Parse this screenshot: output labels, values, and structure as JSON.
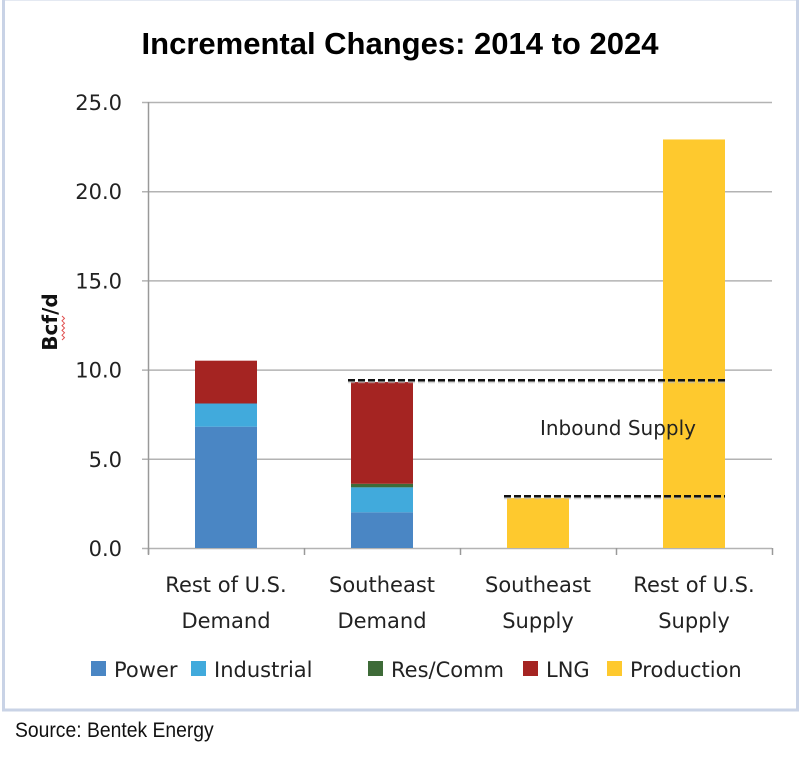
{
  "chart_data": {
    "type": "bar",
    "stacked": true,
    "title": "Incremental Changes: 2014 to 2024",
    "xlabel": "",
    "ylabel": "Bcf/d",
    "ylim": [
      0,
      25
    ],
    "yticks": [
      "0.0",
      "5.0",
      "10.0",
      "15.0",
      "20.0",
      "25.0"
    ],
    "ytick_values": [
      0,
      5,
      10,
      15,
      20,
      25
    ],
    "grid": true,
    "categories": [
      [
        "Rest of U.S.",
        "Demand"
      ],
      [
        "Southeast",
        "Demand"
      ],
      [
        "Southeast",
        "Supply"
      ],
      [
        "Rest of U.S.",
        "Supply"
      ]
    ],
    "series": [
      {
        "name": "Power",
        "color": "#4a86c4",
        "values": [
          6.8,
          2.0,
          0,
          0
        ]
      },
      {
        "name": "Industrial",
        "color": "#41aadc",
        "values": [
          1.3,
          1.4,
          0,
          0
        ]
      },
      {
        "name": "Res/Comm",
        "color": "#3e6b38",
        "values": [
          0,
          0.2,
          0,
          0
        ]
      },
      {
        "name": "LNG",
        "color": "#a52422",
        "values": [
          2.4,
          5.7,
          0,
          0
        ]
      },
      {
        "name": "Production",
        "color": "#fec92e",
        "values": [
          0,
          0,
          2.8,
          22.9
        ]
      }
    ],
    "legend": {
      "position": "bottom"
    },
    "annotations": [
      {
        "text": "Inbound Supply",
        "type": "label"
      },
      {
        "type": "dashed-line",
        "y": 9.4,
        "from_category": 1,
        "to_category": 3
      },
      {
        "type": "dashed-line",
        "y": 2.9,
        "from_category": 2,
        "to_category": 3
      }
    ]
  },
  "source": "Source: Bentek Energy",
  "colors": {
    "frame": "#c9d3e6",
    "gridline": "#b3b3b3"
  }
}
